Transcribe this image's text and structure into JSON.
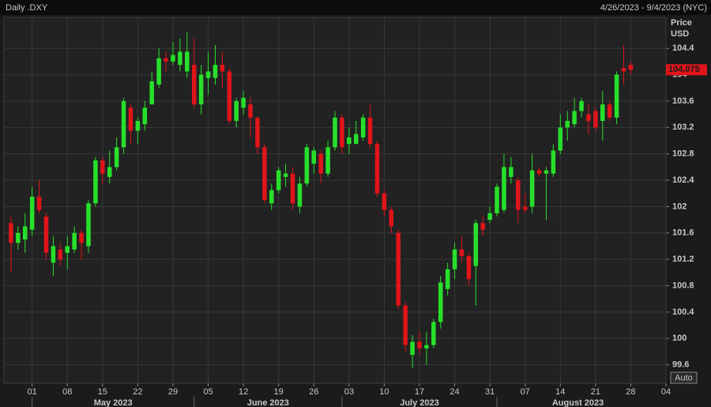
{
  "chart_data": {
    "type": "candlestick",
    "title": "Daily .DXY",
    "date_range": "4/26/2023 - 9/4/2023 (NYC)",
    "y_label": "Price",
    "y_unit": "USD",
    "autoscale_label": "Auto",
    "up_color": "#27e02a",
    "down_color": "#e0141a",
    "last_price": 104.075,
    "ylim": [
      99.32,
      104.87
    ],
    "yticks": [
      99.6,
      100,
      100.4,
      100.8,
      101.2,
      101.6,
      102,
      102.4,
      102.8,
      103.2,
      103.6,
      104,
      104.4
    ],
    "xlim": [
      "2023-04-25",
      "2023-09-04"
    ],
    "xticks": [
      {
        "value": "2023-05-01",
        "label": "01"
      },
      {
        "value": "2023-05-08",
        "label": "08"
      },
      {
        "value": "2023-05-15",
        "label": "15"
      },
      {
        "value": "2023-05-22",
        "label": "22"
      },
      {
        "value": "2023-05-29",
        "label": "29"
      },
      {
        "value": "2023-06-05",
        "label": "05"
      },
      {
        "value": "2023-06-12",
        "label": "12"
      },
      {
        "value": "2023-06-19",
        "label": "19"
      },
      {
        "value": "2023-06-26",
        "label": "26"
      },
      {
        "value": "2023-07-03",
        "label": "03"
      },
      {
        "value": "2023-07-10",
        "label": "10"
      },
      {
        "value": "2023-07-17",
        "label": "17"
      },
      {
        "value": "2023-07-24",
        "label": "24"
      },
      {
        "value": "2023-07-31",
        "label": "31"
      },
      {
        "value": "2023-08-07",
        "label": "07"
      },
      {
        "value": "2023-08-14",
        "label": "14"
      },
      {
        "value": "2023-08-21",
        "label": "21"
      },
      {
        "value": "2023-08-28",
        "label": "28"
      },
      {
        "value": "2023-09-04",
        "label": "04"
      }
    ],
    "month_labels": [
      {
        "value": "2023-05",
        "label": "May 2023"
      },
      {
        "value": "2023-06",
        "label": "June 2023"
      },
      {
        "value": "2023-07",
        "label": "July 2023"
      },
      {
        "value": "2023-08",
        "label": "August 2023"
      }
    ],
    "grid": true,
    "x": [
      "2023-04-26",
      "2023-04-27",
      "2023-04-28",
      "2023-05-01",
      "2023-05-02",
      "2023-05-03",
      "2023-05-04",
      "2023-05-05",
      "2023-05-08",
      "2023-05-09",
      "2023-05-10",
      "2023-05-11",
      "2023-05-12",
      "2023-05-15",
      "2023-05-16",
      "2023-05-17",
      "2023-05-18",
      "2023-05-19",
      "2023-05-22",
      "2023-05-23",
      "2023-05-24",
      "2023-05-25",
      "2023-05-26",
      "2023-05-29",
      "2023-05-30",
      "2023-05-31",
      "2023-06-01",
      "2023-06-02",
      "2023-06-05",
      "2023-06-06",
      "2023-06-07",
      "2023-06-08",
      "2023-06-09",
      "2023-06-12",
      "2023-06-13",
      "2023-06-14",
      "2023-06-15",
      "2023-06-16",
      "2023-06-19",
      "2023-06-20",
      "2023-06-21",
      "2023-06-22",
      "2023-06-23",
      "2023-06-26",
      "2023-06-27",
      "2023-06-28",
      "2023-06-29",
      "2023-06-30",
      "2023-07-03",
      "2023-07-04",
      "2023-07-05",
      "2023-07-06",
      "2023-07-07",
      "2023-07-10",
      "2023-07-11",
      "2023-07-12",
      "2023-07-13",
      "2023-07-14",
      "2023-07-17",
      "2023-07-18",
      "2023-07-19",
      "2023-07-20",
      "2023-07-21",
      "2023-07-24",
      "2023-07-25",
      "2023-07-26",
      "2023-07-27",
      "2023-07-28",
      "2023-07-31",
      "2023-08-01",
      "2023-08-02",
      "2023-08-03",
      "2023-08-04",
      "2023-08-07",
      "2023-08-08",
      "2023-08-09",
      "2023-08-10",
      "2023-08-11",
      "2023-08-14",
      "2023-08-15",
      "2023-08-16",
      "2023-08-17",
      "2023-08-18",
      "2023-08-21",
      "2023-08-22",
      "2023-08-23",
      "2023-08-24",
      "2023-08-25",
      "2023-08-28"
    ],
    "open": [
      101.75,
      101.45,
      101.5,
      101.65,
      102.15,
      101.85,
      101.15,
      101.35,
      101.3,
      101.35,
      101.6,
      101.4,
      102.05,
      102.7,
      102.45,
      102.6,
      102.9,
      103.5,
      103.15,
      103.25,
      103.55,
      103.85,
      104.25,
      104.2,
      104.15,
      104.05,
      104.15,
      103.55,
      103.95,
      103.95,
      104.15,
      104.05,
      103.3,
      103.5,
      103.55,
      103.35,
      102.9,
      102.05,
      102.25,
      102.45,
      102.5,
      102.0,
      102.35,
      102.65,
      102.8,
      102.5,
      102.9,
      103.35,
      102.95,
      102.95,
      103.05,
      103.35,
      102.95,
      102.2,
      101.95,
      101.6,
      100.5,
      99.75,
      99.95,
      99.85,
      99.9,
      100.25,
      100.75,
      101.05,
      101.35,
      101.25,
      101.1,
      101.75,
      101.8,
      101.9,
      101.95,
      102.45,
      102.4,
      102.0,
      102.0,
      102.55,
      102.5,
      102.5,
      102.85,
      103.2,
      103.25,
      103.45,
      103.4,
      103.45,
      103.3,
      103.55,
      103.35,
      104.1,
      104.15
    ],
    "high": [
      101.85,
      101.7,
      101.9,
      102.3,
      102.4,
      101.9,
      101.55,
      101.45,
      101.55,
      101.7,
      101.65,
      102.1,
      102.75,
      102.75,
      102.85,
      103.05,
      103.65,
      103.55,
      103.35,
      103.6,
      104.05,
      104.4,
      104.35,
      104.5,
      104.55,
      104.65,
      104.55,
      104.15,
      104.35,
      104.45,
      104.35,
      104.1,
      103.65,
      103.75,
      103.65,
      103.35,
      102.95,
      102.35,
      102.6,
      102.65,
      102.6,
      102.45,
      102.95,
      102.9,
      102.85,
      103.0,
      103.45,
      103.4,
      103.2,
      103.3,
      103.4,
      103.55,
      103.0,
      102.25,
      102.0,
      101.65,
      100.55,
      100.05,
      100.1,
      100.1,
      100.3,
      100.95,
      101.15,
      101.45,
      101.55,
      101.3,
      101.8,
      101.85,
      102.0,
      102.35,
      102.8,
      102.75,
      102.45,
      102.2,
      102.8,
      102.6,
      102.6,
      102.95,
      103.4,
      103.45,
      103.65,
      103.65,
      103.55,
      103.5,
      103.75,
      103.6,
      104.05,
      104.45,
      104.2
    ],
    "low": [
      101.0,
      101.35,
      101.3,
      101.55,
      101.9,
      101.2,
      100.95,
      101.1,
      101.05,
      101.3,
      101.2,
      101.3,
      102.0,
      102.35,
      102.35,
      102.55,
      102.8,
      102.95,
      102.95,
      103.15,
      103.55,
      103.8,
      104.05,
      104.15,
      104.05,
      103.95,
      103.5,
      103.4,
      103.7,
      103.85,
      103.8,
      103.25,
      103.2,
      103.4,
      103.05,
      102.8,
      102.05,
      101.95,
      102.2,
      102.3,
      101.95,
      101.9,
      102.3,
      102.5,
      102.35,
      102.45,
      102.85,
      102.8,
      102.8,
      102.95,
      103.0,
      102.9,
      102.15,
      101.85,
      101.6,
      100.45,
      99.8,
      99.55,
      99.75,
      99.6,
      99.85,
      100.15,
      100.65,
      100.9,
      101.15,
      100.8,
      100.5,
      101.55,
      101.75,
      101.85,
      101.9,
      102.35,
      101.75,
      101.9,
      101.9,
      102.45,
      101.8,
      102.45,
      102.8,
      103.0,
      103.2,
      103.35,
      103.1,
      103.15,
      103.0,
      103.3,
      103.25,
      103.85,
      104.0
    ],
    "close": [
      101.45,
      101.6,
      101.7,
      102.15,
      101.95,
      101.3,
      101.4,
      101.2,
      101.4,
      101.6,
      101.45,
      102.05,
      102.7,
      102.5,
      102.6,
      102.9,
      103.6,
      103.15,
      103.3,
      103.5,
      103.9,
      104.25,
      104.2,
      104.3,
      104.35,
      104.35,
      103.55,
      104.0,
      104.05,
      104.15,
      104.05,
      103.3,
      103.6,
      103.65,
      103.35,
      102.9,
      102.1,
      102.25,
      102.55,
      102.5,
      102.05,
      102.35,
      102.9,
      102.85,
      102.5,
      102.9,
      103.35,
      102.9,
      103.05,
      103.1,
      103.35,
      102.95,
      102.2,
      101.95,
      101.7,
      100.5,
      99.9,
      99.95,
      99.85,
      99.9,
      100.25,
      100.85,
      101.05,
      101.35,
      101.25,
      100.9,
      101.75,
      101.65,
      101.9,
      102.3,
      102.6,
      102.6,
      101.95,
      101.95,
      102.55,
      102.5,
      102.55,
      102.85,
      103.2,
      103.3,
      103.45,
      103.6,
      103.3,
      103.2,
      103.55,
      103.35,
      104.0,
      104.05,
      104.075
    ]
  }
}
